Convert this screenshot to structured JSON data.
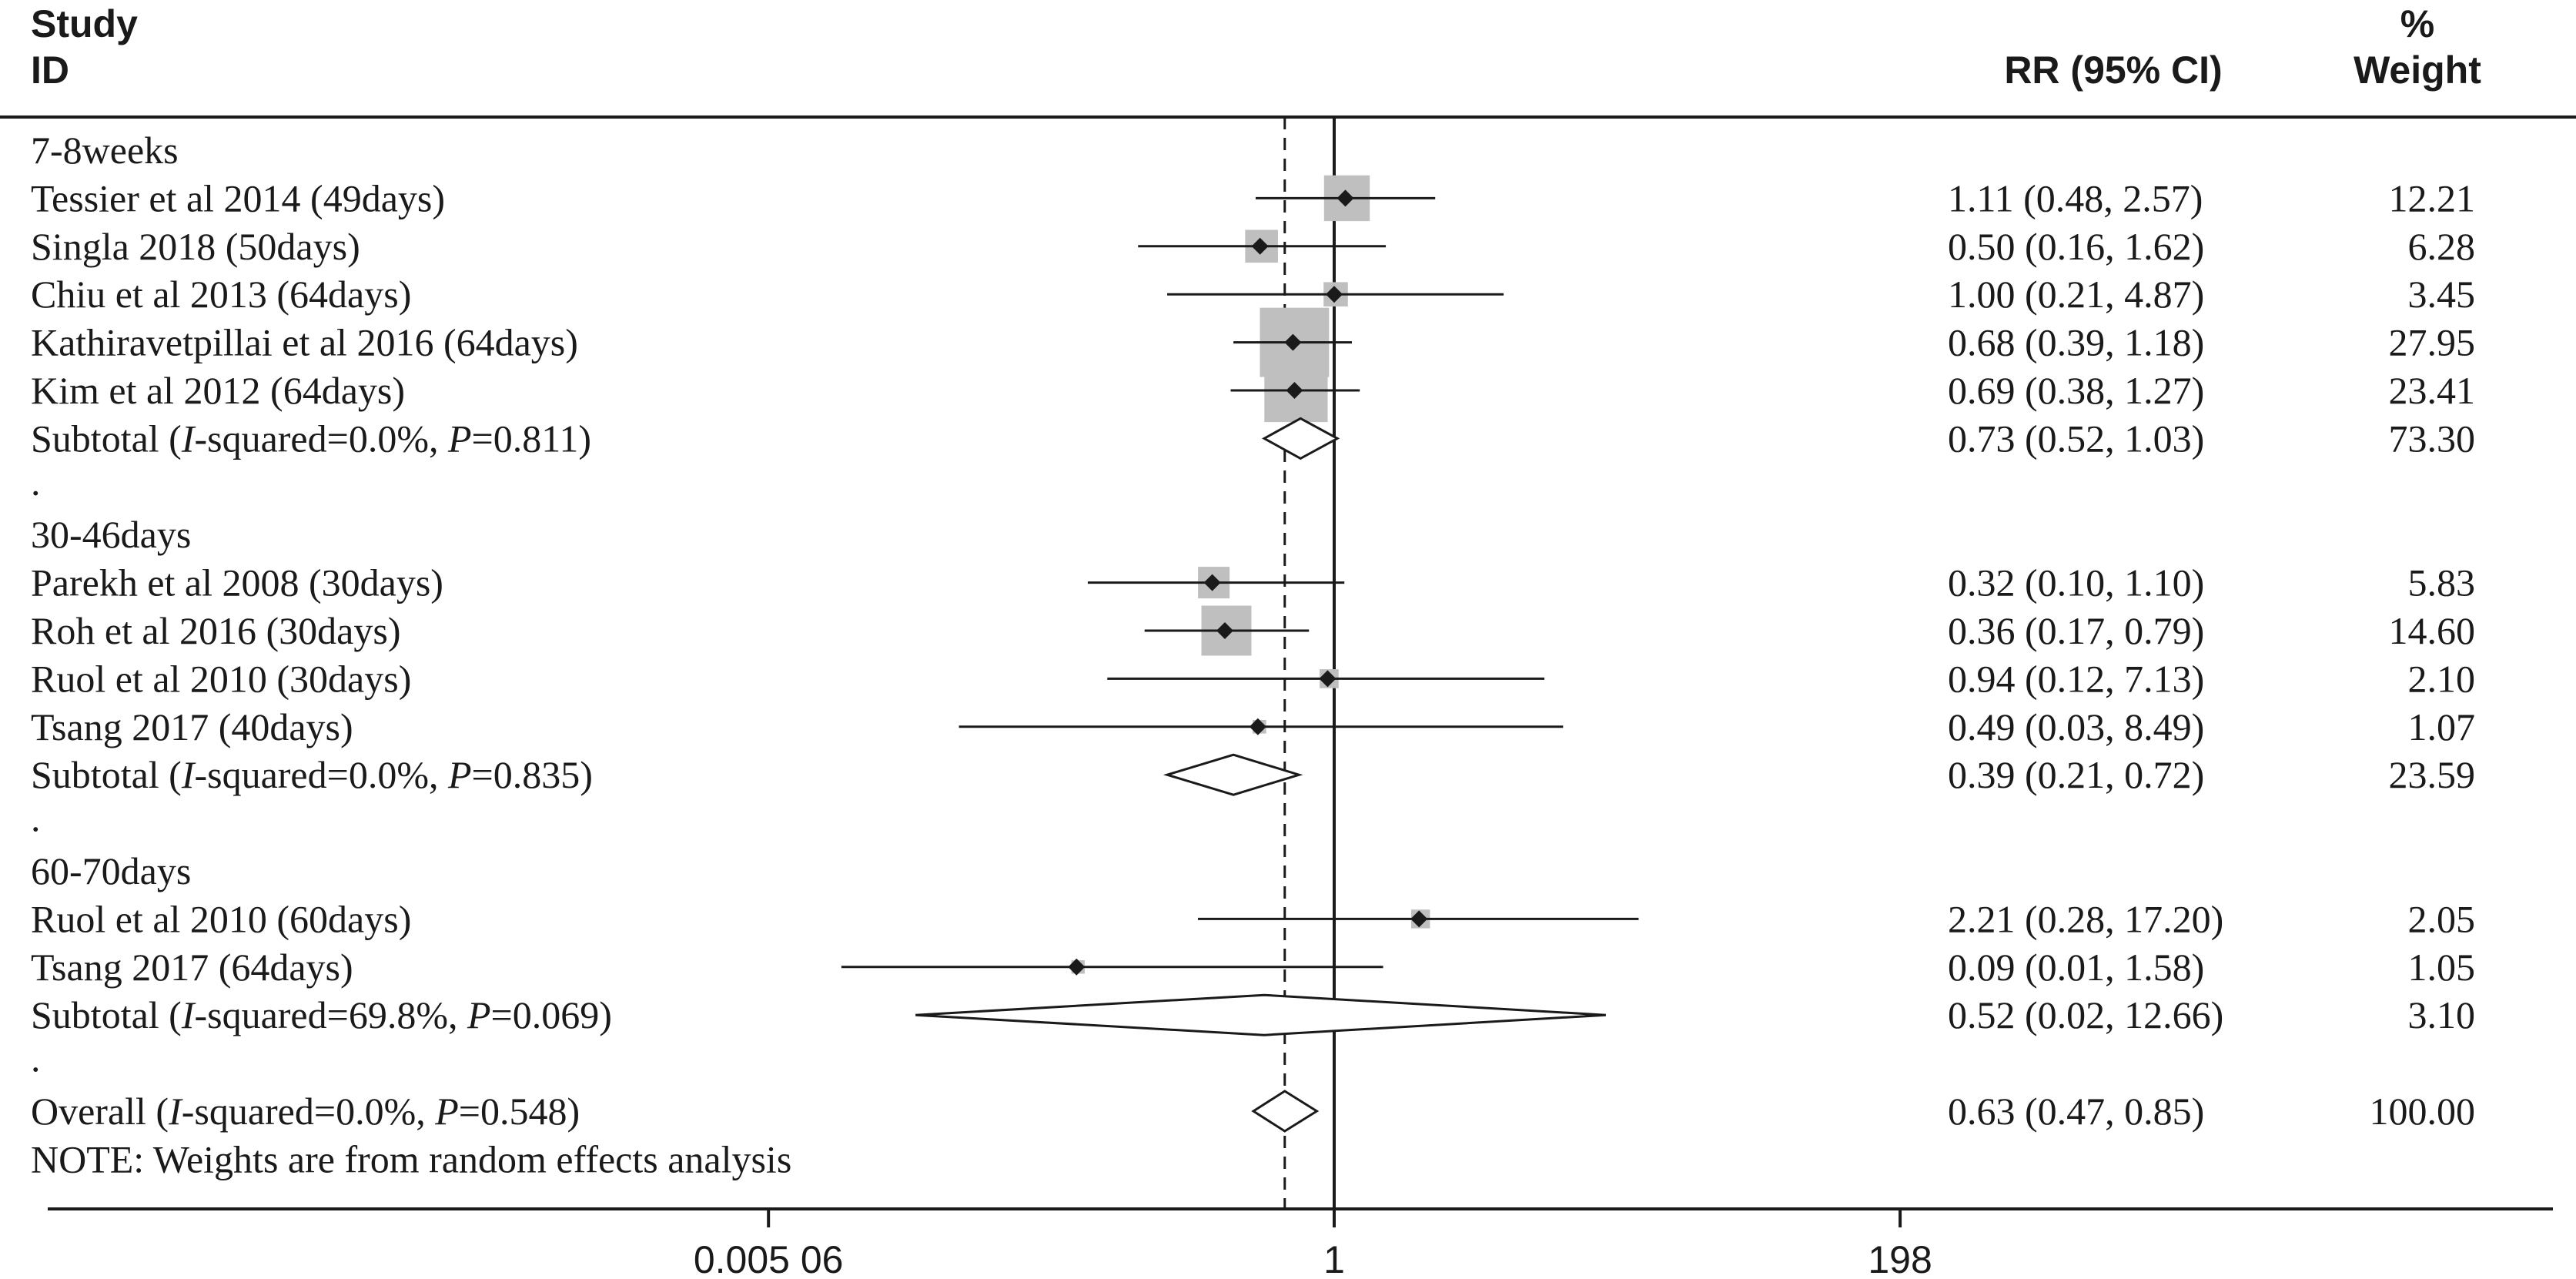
{
  "header": {
    "study_label_line1": "Study",
    "study_label_line2": "ID",
    "rr_label": "RR (95% CI)",
    "weight_label_line1": "%",
    "weight_label_line2": "Weight"
  },
  "chart_data": {
    "type": "forest",
    "measure": "RR",
    "x_scale": "log",
    "null_line": 1,
    "pooled_estimate_line": 0.63,
    "xticks": [
      {
        "value": 0.00506,
        "label": "0.005 06"
      },
      {
        "value": 1,
        "label": "1"
      },
      {
        "value": 198,
        "label": "198"
      }
    ],
    "rows": [
      {
        "kind": "group",
        "label": "7-8weeks"
      },
      {
        "kind": "study",
        "label": "Tessier et al 2014 (49days)",
        "rr": 1.11,
        "lo": 0.48,
        "hi": 2.57,
        "rr_text": "1.11 (0.48, 2.57)",
        "weight": "12.21"
      },
      {
        "kind": "study",
        "label": "Singla 2018 (50days)",
        "rr": 0.5,
        "lo": 0.16,
        "hi": 1.62,
        "rr_text": "0.50 (0.16, 1.62)",
        "weight": "6.28"
      },
      {
        "kind": "study",
        "label": "Chiu et al 2013 (64days)",
        "rr": 1.0,
        "lo": 0.21,
        "hi": 4.87,
        "rr_text": "1.00 (0.21, 4.87)",
        "weight": "3.45"
      },
      {
        "kind": "study",
        "label": "Kathiravetpillai et al 2016 (64days)",
        "rr": 0.68,
        "lo": 0.39,
        "hi": 1.18,
        "rr_text": "0.68 (0.39, 1.18)",
        "weight": "27.95"
      },
      {
        "kind": "study",
        "label": "Kim et al 2012 (64days)",
        "rr": 0.69,
        "lo": 0.38,
        "hi": 1.27,
        "rr_text": "0.69 (0.38, 1.27)",
        "weight": "23.41"
      },
      {
        "kind": "subtotal",
        "label_prefix": "Subtotal  (",
        "i2_italic": "I",
        "i2_text": "-squared=0.0%, ",
        "p_italic": "P",
        "p_text": "=0.811)",
        "rr": 0.73,
        "lo": 0.52,
        "hi": 1.03,
        "rr_text": "0.73 (0.52, 1.03)",
        "weight": "73.30"
      },
      {
        "kind": "spacer",
        "label": "."
      },
      {
        "kind": "group",
        "label": "30-46days"
      },
      {
        "kind": "study",
        "label": "Parekh et al 2008 (30days)",
        "rr": 0.32,
        "lo": 0.1,
        "hi": 1.1,
        "rr_text": "0.32 (0.10, 1.10)",
        "weight": "5.83"
      },
      {
        "kind": "study",
        "label": "Roh et al 2016 (30days)",
        "rr": 0.36,
        "lo": 0.17,
        "hi": 0.79,
        "rr_text": "0.36 (0.17, 0.79)",
        "weight": "14.60"
      },
      {
        "kind": "study",
        "label": "Ruol et al 2010 (30days)",
        "rr": 0.94,
        "lo": 0.12,
        "hi": 7.13,
        "rr_text": "0.94 (0.12, 7.13)",
        "weight": "2.10"
      },
      {
        "kind": "study",
        "label": "Tsang 2017 (40days)",
        "rr": 0.49,
        "lo": 0.03,
        "hi": 8.49,
        "rr_text": "0.49 (0.03, 8.49)",
        "weight": "1.07"
      },
      {
        "kind": "subtotal",
        "label_prefix": "Subtotal  (",
        "i2_italic": "I",
        "i2_text": "-squared=0.0%, ",
        "p_italic": "P",
        "p_text": "=0.835)",
        "rr": 0.39,
        "lo": 0.21,
        "hi": 0.72,
        "rr_text": "0.39 (0.21, 0.72)",
        "weight": "23.59"
      },
      {
        "kind": "spacer",
        "label": "."
      },
      {
        "kind": "group",
        "label": "60-70days"
      },
      {
        "kind": "study",
        "label": "Ruol et al 2010 (60days)",
        "rr": 2.21,
        "lo": 0.28,
        "hi": 17.2,
        "rr_text": "2.21 (0.28, 17.20)",
        "weight": "2.05"
      },
      {
        "kind": "study",
        "label": "Tsang 2017 (64days)",
        "rr": 0.09,
        "lo": 0.01,
        "hi": 1.58,
        "rr_text": "0.09 (0.01, 1.58)",
        "weight": "1.05"
      },
      {
        "kind": "subtotal",
        "label_prefix": "Subtotal  (",
        "i2_italic": "I",
        "i2_text": "-squared=69.8%, ",
        "p_italic": "P",
        "p_text": "=0.069)",
        "rr": 0.52,
        "lo": 0.02,
        "hi": 12.66,
        "rr_text": "0.52 (0.02, 12.66)",
        "weight": "3.10"
      },
      {
        "kind": "spacer",
        "label": "."
      },
      {
        "kind": "overall",
        "label_prefix": "Overall  (",
        "i2_italic": "I",
        "i2_text": "-squared=0.0%, ",
        "p_italic": "P",
        "p_text": "=0.548)",
        "rr": 0.63,
        "lo": 0.47,
        "hi": 0.85,
        "rr_text": "0.63 (0.47, 0.85)",
        "weight": "100.00"
      },
      {
        "kind": "note",
        "label": "NOTE: Weights are from random effects analysis"
      }
    ]
  },
  "colors": {
    "text": "#1a1a1a",
    "line": "#1a1a1a",
    "weight_box": "#bfbfbf",
    "point": "#1a1a1a",
    "diamond_fill": "#ffffff"
  }
}
